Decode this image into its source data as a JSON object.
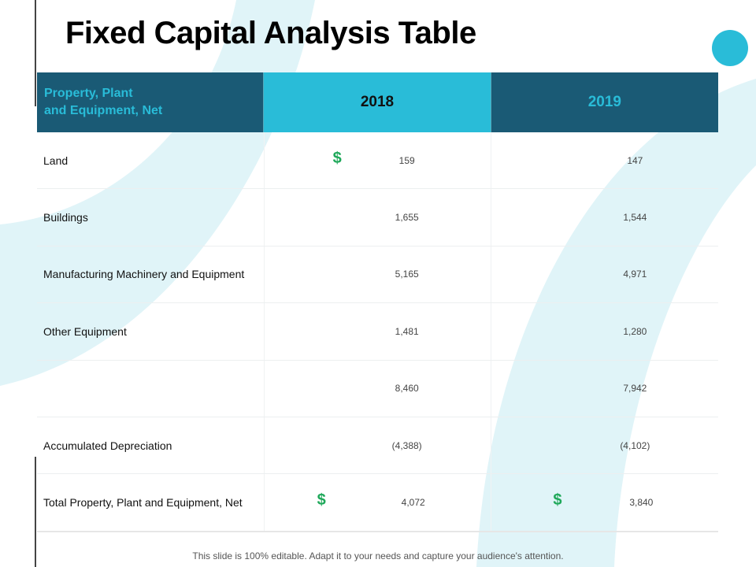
{
  "title": "Fixed Capital Analysis Table",
  "table": {
    "headers": [
      "Property, Plant\nand Equipment, Net",
      "2018",
      "2019"
    ],
    "currency_symbol": "$",
    "rows": [
      {
        "label": "Land",
        "y2018": "159",
        "y2019": "147",
        "dollar2018": true,
        "dollar2019": false
      },
      {
        "label": "Buildings",
        "y2018": "1,655",
        "y2019": "1,544"
      },
      {
        "label": "Manufacturing Machinery and Equipment",
        "y2018": "5,165",
        "y2019": "4,971"
      },
      {
        "label": "Other Equipment",
        "y2018": "1,481",
        "y2019": "1,280"
      },
      {
        "label": "",
        "y2018": "8,460",
        "y2019": "7,942"
      },
      {
        "label": "Accumulated Depreciation",
        "y2018": "(4,388)",
        "y2019": "(4,102)"
      },
      {
        "label": "Total Property, Plant and Equipment, Net",
        "y2018": "4,072",
        "y2019": "3,840",
        "dollar2018": true,
        "dollar2019": true
      }
    ]
  },
  "footer": "This slide is 100% editable. Adapt it to your needs and capture your audience's attention.",
  "colors": {
    "header_dark": "#1a5a75",
    "header_accent": "#29bcd8",
    "dollar": "#1fa85a",
    "background_shape": "#e0f4f8"
  }
}
